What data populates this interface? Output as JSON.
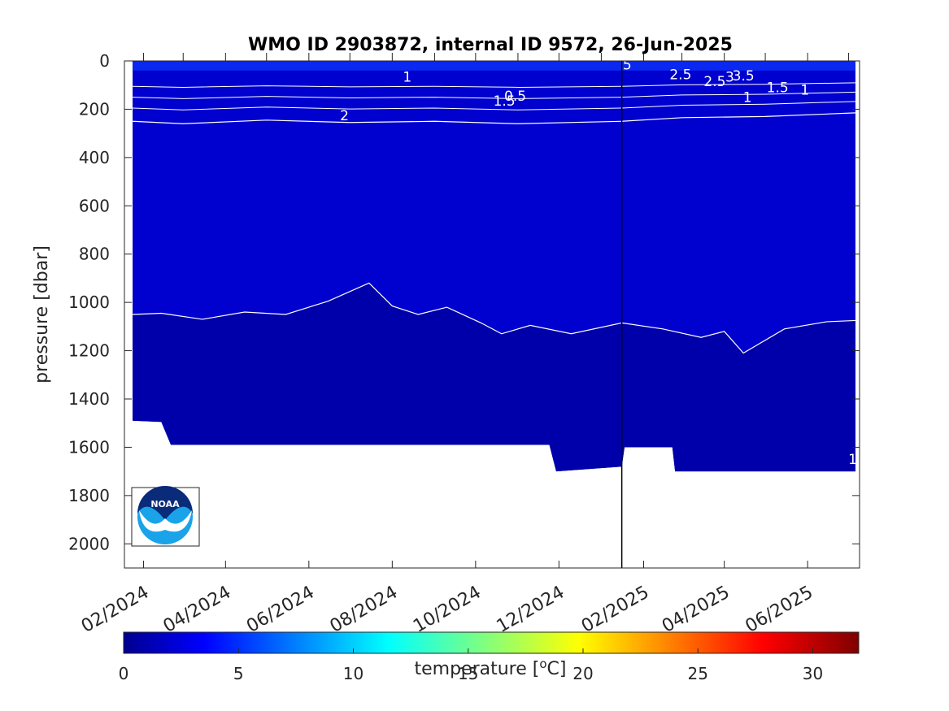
{
  "chart_data": {
    "type": "heatmap",
    "title": "WMO ID 2903872, internal ID 9572, 26-Jun-2025",
    "ylabel": "pressure [dbar]",
    "xlabel": "",
    "ylim": [
      2100,
      0
    ],
    "yticks": [
      0,
      200,
      400,
      600,
      800,
      1000,
      1200,
      1400,
      1600,
      1800,
      2000
    ],
    "xlim": [
      "2024-01-18",
      "2025-07-09"
    ],
    "xticks": [
      {
        "date": "2024-02-01",
        "label": "02/2024"
      },
      {
        "date": "2024-04-01",
        "label": "04/2024"
      },
      {
        "date": "2024-06-01",
        "label": "06/2024"
      },
      {
        "date": "2024-08-01",
        "label": "08/2024"
      },
      {
        "date": "2024-10-01",
        "label": "10/2024"
      },
      {
        "date": "2024-12-01",
        "label": "12/2024"
      },
      {
        "date": "2025-02-01",
        "label": "02/2025"
      },
      {
        "date": "2025-04-01",
        "label": "04/2025"
      },
      {
        "date": "2025-06-01",
        "label": "06/2025"
      }
    ],
    "date_marker": "2025-01-16",
    "colorbar": {
      "label": "temperature [",
      "label_sup": "o",
      "label_end": "C]",
      "range": [
        0,
        32
      ],
      "ticks": [
        0,
        5,
        10,
        15,
        20,
        25,
        30
      ],
      "colormap": "jet"
    },
    "profiles_max_pressure": [
      {
        "date": "2024-01-24",
        "pressure": 1490
      },
      {
        "date": "2024-02-14",
        "pressure": 1495
      },
      {
        "date": "2024-02-21",
        "pressure": 1590
      },
      {
        "date": "2024-11-24",
        "pressure": 1590
      },
      {
        "date": "2024-11-29",
        "pressure": 1700
      },
      {
        "date": "2025-01-16",
        "pressure": 1680
      },
      {
        "date": "2025-01-18",
        "pressure": 1600
      },
      {
        "date": "2025-02-22",
        "pressure": 1600
      },
      {
        "date": "2025-02-24",
        "pressure": 1700
      },
      {
        "date": "2025-07-06",
        "pressure": 1700
      }
    ],
    "deep_isotherm_1C": [
      {
        "date": "2024-01-24",
        "pressure": 1050
      },
      {
        "date": "2024-02-14",
        "pressure": 1045
      },
      {
        "date": "2024-03-15",
        "pressure": 1070
      },
      {
        "date": "2024-04-15",
        "pressure": 1040
      },
      {
        "date": "2024-05-15",
        "pressure": 1050
      },
      {
        "date": "2024-06-15",
        "pressure": 995
      },
      {
        "date": "2024-07-15",
        "pressure": 920
      },
      {
        "date": "2024-08-01",
        "pressure": 1015
      },
      {
        "date": "2024-08-20",
        "pressure": 1050
      },
      {
        "date": "2024-09-10",
        "pressure": 1020
      },
      {
        "date": "2024-10-05",
        "pressure": 1085
      },
      {
        "date": "2024-10-20",
        "pressure": 1130
      },
      {
        "date": "2024-11-10",
        "pressure": 1095
      },
      {
        "date": "2024-12-10",
        "pressure": 1130
      },
      {
        "date": "2025-01-16",
        "pressure": 1085
      },
      {
        "date": "2025-02-15",
        "pressure": 1110
      },
      {
        "date": "2025-03-15",
        "pressure": 1145
      },
      {
        "date": "2025-04-01",
        "pressure": 1120
      },
      {
        "date": "2025-04-15",
        "pressure": 1210
      },
      {
        "date": "2025-05-15",
        "pressure": 1110
      },
      {
        "date": "2025-06-15",
        "pressure": 1080
      },
      {
        "date": "2025-07-06",
        "pressure": 1075
      }
    ],
    "thermocline_isotherm_2C": [
      {
        "date": "2024-01-24",
        "pressure": 250
      },
      {
        "date": "2024-03-01",
        "pressure": 260
      },
      {
        "date": "2024-05-01",
        "pressure": 245
      },
      {
        "date": "2024-07-01",
        "pressure": 255
      },
      {
        "date": "2024-09-01",
        "pressure": 250
      },
      {
        "date": "2024-11-01",
        "pressure": 260
      },
      {
        "date": "2025-01-16",
        "pressure": 250
      },
      {
        "date": "2025-03-01",
        "pressure": 235
      },
      {
        "date": "2025-05-01",
        "pressure": 230
      },
      {
        "date": "2025-07-06",
        "pressure": 215
      }
    ],
    "contour_labels": [
      {
        "text": "1",
        "date": "2024-08-12",
        "pressure": 85
      },
      {
        "text": "2",
        "date": "2024-06-27",
        "pressure": 245
      },
      {
        "text": "1.5",
        "date": "2024-10-22",
        "pressure": 185
      },
      {
        "text": "0.5",
        "date": "2024-10-30",
        "pressure": 165
      },
      {
        "text": "5",
        "date": "2025-01-20",
        "pressure": 35
      },
      {
        "text": "2.5",
        "date": "2025-02-28",
        "pressure": 75
      },
      {
        "text": "2.5",
        "date": "2025-03-25",
        "pressure": 105
      },
      {
        "text": "3",
        "date": "2025-04-05",
        "pressure": 85
      },
      {
        "text": "3.5",
        "date": "2025-04-15",
        "pressure": 80
      },
      {
        "text": "1.5",
        "date": "2025-05-10",
        "pressure": 130
      },
      {
        "text": "1",
        "date": "2025-05-30",
        "pressure": 140
      },
      {
        "text": "1",
        "date": "2025-04-18",
        "pressure": 170
      },
      {
        "text": "1",
        "date": "2025-07-04",
        "pressure": 1670
      }
    ],
    "colors": {
      "deep_fill": "#0000aa",
      "mid_fill": "#0000cf",
      "surface_fill": "#0a28f0",
      "contour": "#ffffff",
      "logo_dark": "#0a2a7a",
      "logo_light": "#1aa3e8"
    }
  },
  "logo": {
    "text": "NOAA"
  }
}
